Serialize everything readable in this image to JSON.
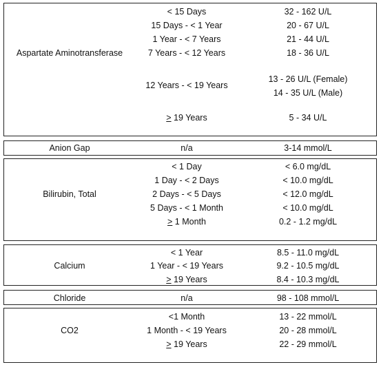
{
  "sections": [
    {
      "test": "Aspartate Aminotransferase",
      "rows": [
        {
          "age": "< 15 Days",
          "range": "32 - 162 U/L"
        },
        {
          "age": "15 Days - < 1 Year",
          "range": "20 - 67 U/L"
        },
        {
          "age": "1 Year - < 7 Years",
          "range": "21 - 44 U/L"
        },
        {
          "age": "7 Years - < 12 Years",
          "range": "18 - 36 U/L"
        },
        {
          "age": "12 Years - < 19 Years",
          "range": "13 - 26 U/L (Female)",
          "range2": "14 - 35 U/L (Male)"
        },
        {
          "age_sym": ">",
          "age": " 19 Years",
          "range": "5 - 34 U/L"
        }
      ]
    },
    {
      "test": "Anion Gap",
      "rows": [
        {
          "age": "n/a",
          "range": "3-14 mmol/L"
        }
      ]
    },
    {
      "test": "Bilirubin, Total",
      "rows": [
        {
          "age": "< 1 Day",
          "range": "< 6.0 mg/dL"
        },
        {
          "age": "1 Day - < 2 Days",
          "range": "< 10.0 mg/dL"
        },
        {
          "age": "2 Days - < 5 Days",
          "range": "< 12.0 mg/dL"
        },
        {
          "age": "5 Days - < 1 Month",
          "range": "< 10.0 mg/dL"
        },
        {
          "age_sym": ">",
          "age": " 1 Month",
          "range": "0.2 - 1.2 mg/dL"
        }
      ]
    },
    {
      "test": "Calcium",
      "rows": [
        {
          "age": "< 1 Year",
          "range": "8.5 - 11.0 mg/dL"
        },
        {
          "age": "1 Year - < 19 Years",
          "range": "9.2 - 10.5 mg/dL"
        },
        {
          "age_sym": ">",
          "age": " 19 Years",
          "range": "8.4 - 10.3 mg/dL"
        }
      ]
    },
    {
      "test": "Chloride",
      "rows": [
        {
          "age": "n/a",
          "range": "98 - 108 mmol/L"
        }
      ]
    },
    {
      "test": "CO2",
      "rows": [
        {
          "age": "<1 Month",
          "range": "13 - 22 mmol/L"
        },
        {
          "age": "1 Month - < 19 Years",
          "range": "20 - 28 mmol/L"
        },
        {
          "age_sym": ">",
          "age": " 19 Years",
          "range": "22 - 29 mmol/L"
        }
      ]
    }
  ]
}
